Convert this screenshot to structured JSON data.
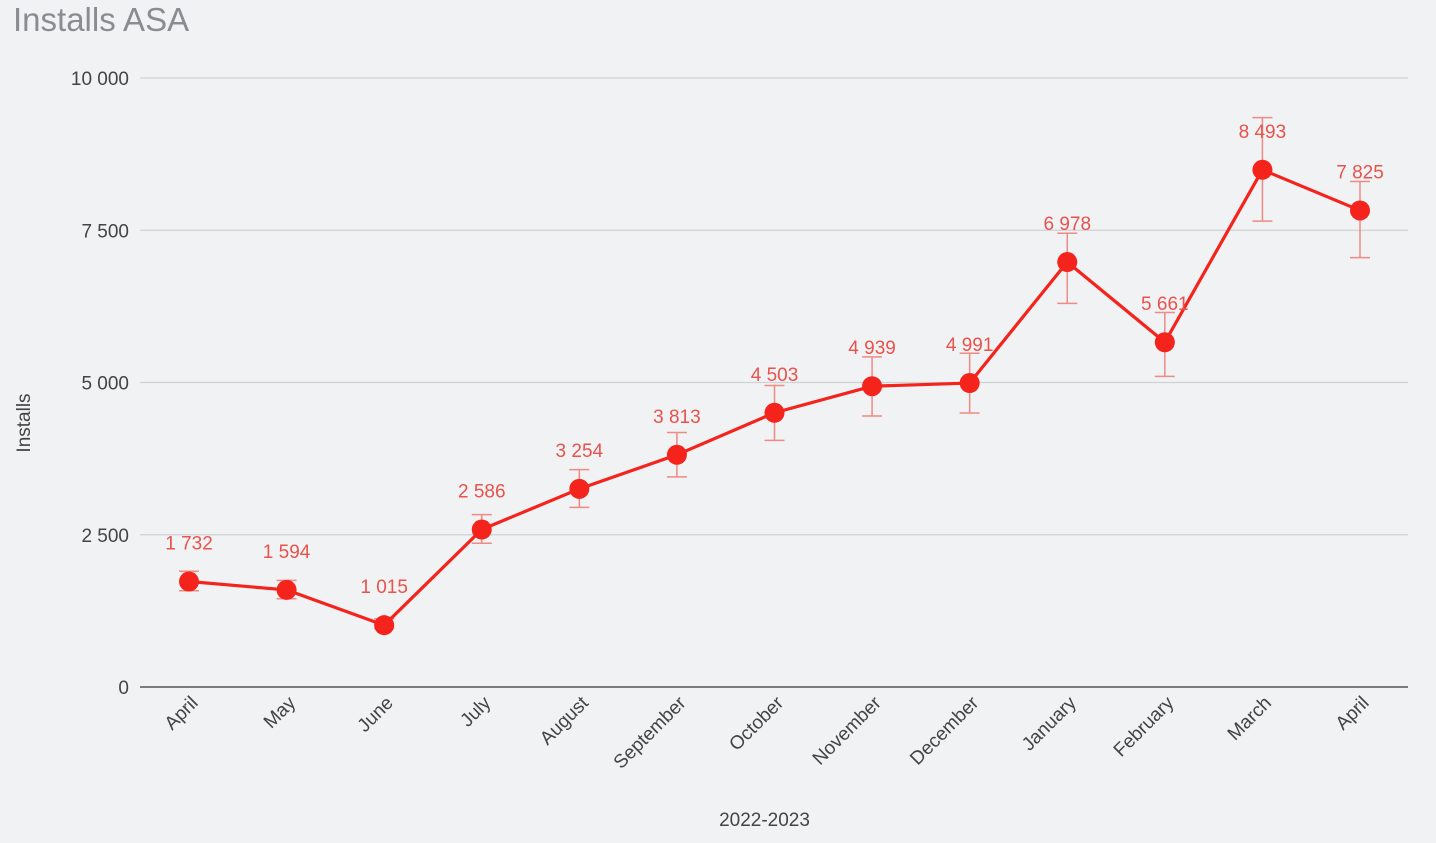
{
  "chart_data": {
    "type": "line",
    "title": "Installs ASA",
    "xlabel": "2022-2023",
    "ylabel": "Installs",
    "ylim": [
      0,
      10000
    ],
    "yticks": [
      0,
      2500,
      5000,
      7500,
      10000
    ],
    "ytick_labels": [
      "0",
      "2 500",
      "5 000",
      "7 500",
      "10 000"
    ],
    "grid": true,
    "legend": "none",
    "categories": [
      "April",
      "May",
      "June",
      "July",
      "August",
      "September",
      "October",
      "November",
      "December",
      "January",
      "February",
      "March",
      "April"
    ],
    "series": [
      {
        "values": [
          1732,
          1594,
          1015,
          2586,
          3254,
          3813,
          4503,
          4939,
          4991,
          6978,
          5661,
          8493,
          7825
        ],
        "value_labels": [
          "1 732",
          "1 594",
          "1 015",
          "2 586",
          "3 254",
          "3 813",
          "4 503",
          "4 939",
          "4 991",
          "6 978",
          "5 661",
          "8 493",
          "7 825"
        ],
        "error_low": [
          1580,
          1450,
          960,
          2360,
          2950,
          3450,
          4050,
          4450,
          4500,
          6300,
          5100,
          7650,
          7050
        ],
        "error_high": [
          1900,
          1750,
          1120,
          2830,
          3570,
          4180,
          4950,
          5420,
          5480,
          7450,
          6150,
          9350,
          8300
        ],
        "color": "#f4231c"
      }
    ],
    "colors": {
      "line": "#f4231c",
      "error_bar": "#f08a84",
      "data_label": "#e8534c",
      "grid": "#cfd1d4",
      "axis": "#555555"
    }
  }
}
